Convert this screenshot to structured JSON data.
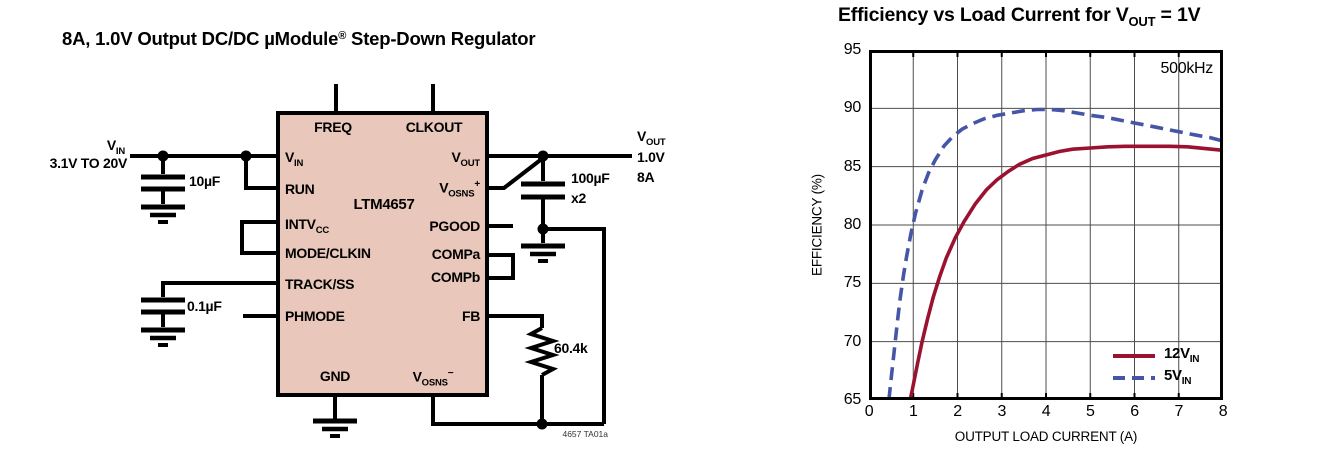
{
  "circuit": {
    "title": {
      "text": "8A, 1.0V Output DC/DC µModule",
      "reg": "®",
      "suffix": " Step-Down Regulator"
    },
    "chip": {
      "name": "LTM4657",
      "fill": "#e9c7ba"
    },
    "pins": {
      "freq": "FREQ",
      "clkout": "CLKOUT",
      "vin": {
        "main": "V",
        "sub": "IN"
      },
      "run": "RUN",
      "intvcc": {
        "main": "INTV",
        "sub": "CC"
      },
      "mode": "MODE/CLKIN",
      "track": "TRACK/SS",
      "phmode": "PHMODE",
      "vout": {
        "main": "V",
        "sub": "OUT"
      },
      "vosns_p": {
        "main": "V",
        "sub": "OSNS",
        "sup": "+"
      },
      "pgood": "PGOOD",
      "compa": "COMPa",
      "compb": "COMPb",
      "fb": "FB",
      "gnd": "GND",
      "vosns_n": {
        "main": "V",
        "sub": "OSNS",
        "sup": "−"
      }
    },
    "labels": {
      "vin_rail": {
        "main": "V",
        "sub": "IN"
      },
      "vin_range": "3.1V TO 20V",
      "cin_value": "10µF",
      "css_value": "0.1µF",
      "vout_rail": {
        "main": "V",
        "sub": "OUT"
      },
      "vout_voltage": "1.0V",
      "vout_current": "8A",
      "cout_value": "100µF",
      "cout_mult": "x2",
      "rfb_value": "60.4k",
      "fig_id": "4657 TA01a"
    }
  },
  "chart_data": {
    "type": "line",
    "title": {
      "prefix": "Efficiency vs Load Current for V",
      "sub": "OUT",
      "suffix": " = 1V"
    },
    "xlabel": "OUTPUT LOAD CURRENT (A)",
    "ylabel": "EFFICIENCY (%)",
    "annotation": "500kHz",
    "xlim": [
      0,
      8
    ],
    "ylim": [
      65,
      95
    ],
    "x_ticks": [
      0,
      1,
      2,
      3,
      4,
      5,
      6,
      7,
      8
    ],
    "y_ticks": [
      95,
      90,
      85,
      80,
      75,
      70,
      65
    ],
    "grid": true,
    "grid_color": "#4d4d4d",
    "frame_color": "#000000",
    "legend_position": "lower right",
    "series": [
      {
        "label_main": "12V",
        "label_sub": "IN",
        "color": "#9b1230",
        "style": "solid",
        "points": [
          [
            0.93,
            65
          ],
          [
            1.0,
            66.3
          ],
          [
            1.1,
            68.2
          ],
          [
            1.2,
            70.0
          ],
          [
            1.32,
            71.9
          ],
          [
            1.45,
            73.8
          ],
          [
            1.6,
            75.6
          ],
          [
            1.75,
            77.2
          ],
          [
            1.95,
            78.9
          ],
          [
            2.15,
            80.3
          ],
          [
            2.4,
            81.8
          ],
          [
            2.65,
            83.0
          ],
          [
            2.9,
            83.9
          ],
          [
            3.15,
            84.6
          ],
          [
            3.4,
            85.2
          ],
          [
            3.7,
            85.7
          ],
          [
            4.0,
            86.0
          ],
          [
            4.3,
            86.3
          ],
          [
            4.6,
            86.5
          ],
          [
            5.0,
            86.6
          ],
          [
            5.4,
            86.7
          ],
          [
            5.8,
            86.75
          ],
          [
            6.3,
            86.75
          ],
          [
            6.8,
            86.75
          ],
          [
            7.2,
            86.7
          ],
          [
            7.6,
            86.55
          ],
          [
            8.0,
            86.4
          ]
        ]
      },
      {
        "label_main": "5V",
        "label_sub": "IN",
        "color": "#4456a5",
        "style": "dashed",
        "points": [
          [
            0.45,
            65
          ],
          [
            0.5,
            66.8
          ],
          [
            0.55,
            68.5
          ],
          [
            0.6,
            70.3
          ],
          [
            0.65,
            72.0
          ],
          [
            0.7,
            73.6
          ],
          [
            0.78,
            75.7
          ],
          [
            0.85,
            77.3
          ],
          [
            0.95,
            79.3
          ],
          [
            1.05,
            81.0
          ],
          [
            1.2,
            83.0
          ],
          [
            1.35,
            84.5
          ],
          [
            1.5,
            85.6
          ],
          [
            1.7,
            86.8
          ],
          [
            1.9,
            87.6
          ],
          [
            2.1,
            88.2
          ],
          [
            2.35,
            88.7
          ],
          [
            2.6,
            89.1
          ],
          [
            2.9,
            89.4
          ],
          [
            3.2,
            89.6
          ],
          [
            3.5,
            89.8
          ],
          [
            3.8,
            89.9
          ],
          [
            4.1,
            89.9
          ],
          [
            4.4,
            89.8
          ],
          [
            4.7,
            89.6
          ],
          [
            5.0,
            89.4
          ],
          [
            5.4,
            89.2
          ],
          [
            5.8,
            88.9
          ],
          [
            6.2,
            88.6
          ],
          [
            6.6,
            88.3
          ],
          [
            7.0,
            88.0
          ],
          [
            7.4,
            87.7
          ],
          [
            7.7,
            87.5
          ],
          [
            8.0,
            87.2
          ]
        ]
      }
    ]
  }
}
